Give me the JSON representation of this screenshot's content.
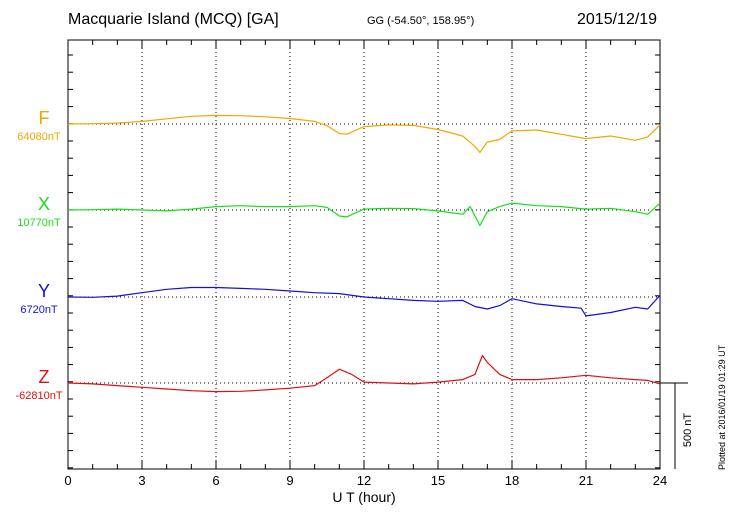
{
  "header": {
    "title": "Macquarie Island (MCQ)  [GA]",
    "coords": "GG (-54.50°, 158.95°)",
    "date": "2015/12/19"
  },
  "footer": {
    "plotted": "Plotted at 2016/01/19 01:29 UT"
  },
  "scale_bar": {
    "label": "500 nT",
    "value": 500
  },
  "chart_data": {
    "type": "line",
    "xlabel": "U T (hour)",
    "xlim": [
      0,
      24
    ],
    "xticks": [
      "0",
      "3",
      "6",
      "9",
      "12",
      "15",
      "18",
      "21",
      "24"
    ],
    "grid": true,
    "series": [
      {
        "name": "F",
        "baseline_label": "64080nT",
        "baseline": 64080,
        "color": "#f0a800",
        "x": [
          0,
          1,
          2,
          3,
          4,
          5,
          6,
          7,
          8,
          9,
          10,
          10.5,
          11,
          11.3,
          12,
          13,
          14,
          15,
          16,
          16.5,
          16.7,
          17,
          17.5,
          18,
          19,
          20,
          21,
          22,
          23,
          23.5,
          24
        ],
        "values": [
          64080,
          64082,
          64085,
          64095,
          64110,
          64125,
          64130,
          64128,
          64122,
          64112,
          64095,
          64070,
          64025,
          64020,
          64065,
          64075,
          64072,
          64048,
          64010,
          63950,
          63915,
          63975,
          63990,
          64040,
          64045,
          64020,
          63995,
          64010,
          63985,
          64005,
          64075
        ]
      },
      {
        "name": "X",
        "baseline_label": "10770nT",
        "baseline": 10770,
        "color": "#18e018",
        "x": [
          0,
          1,
          2,
          3,
          4,
          5,
          6,
          7,
          8,
          9,
          10,
          10.5,
          11,
          11.3,
          12,
          13,
          14,
          15,
          16,
          16.3,
          16.7,
          17,
          17.5,
          18,
          19,
          20,
          21,
          22,
          23,
          23.5,
          24
        ],
        "values": [
          10770,
          10772,
          10775,
          10770,
          10765,
          10775,
          10790,
          10795,
          10790,
          10790,
          10795,
          10785,
          10735,
          10730,
          10775,
          10780,
          10778,
          10765,
          10745,
          10790,
          10680,
          10760,
          10790,
          10810,
          10795,
          10790,
          10775,
          10780,
          10760,
          10745,
          10810
        ]
      },
      {
        "name": "Y",
        "baseline_label": "6720nT",
        "baseline": 6720,
        "color": "#1010d8",
        "x": [
          0,
          1,
          2,
          3,
          4,
          5,
          6,
          7,
          8,
          9,
          10,
          11,
          12,
          13,
          14,
          15,
          16,
          16.5,
          17,
          17.5,
          18,
          19,
          20,
          20.8,
          21,
          22,
          23,
          23.5,
          24
        ],
        "values": [
          6720,
          6718,
          6725,
          6745,
          6765,
          6775,
          6775,
          6770,
          6765,
          6755,
          6745,
          6740,
          6720,
          6710,
          6700,
          6695,
          6700,
          6665,
          6650,
          6670,
          6710,
          6680,
          6665,
          6655,
          6610,
          6630,
          6660,
          6650,
          6730
        ]
      },
      {
        "name": "Z",
        "baseline_label": "-62810nT",
        "baseline": -62810,
        "color": "#e01010",
        "x": [
          0,
          1,
          2,
          3,
          4,
          5,
          6,
          7,
          8,
          9,
          10,
          10.5,
          11,
          11.5,
          12,
          13,
          14,
          15,
          16,
          16.5,
          16.8,
          17,
          17.5,
          18,
          19,
          20,
          21,
          22,
          23,
          23.5,
          24
        ],
        "values": [
          -62810,
          -62815,
          -62825,
          -62835,
          -62845,
          -62855,
          -62860,
          -62858,
          -62850,
          -62840,
          -62825,
          -62780,
          -62730,
          -62760,
          -62805,
          -62810,
          -62815,
          -62805,
          -62790,
          -62760,
          -62650,
          -62690,
          -62760,
          -62790,
          -62790,
          -62780,
          -62765,
          -62780,
          -62790,
          -62795,
          -62815
        ]
      }
    ]
  }
}
